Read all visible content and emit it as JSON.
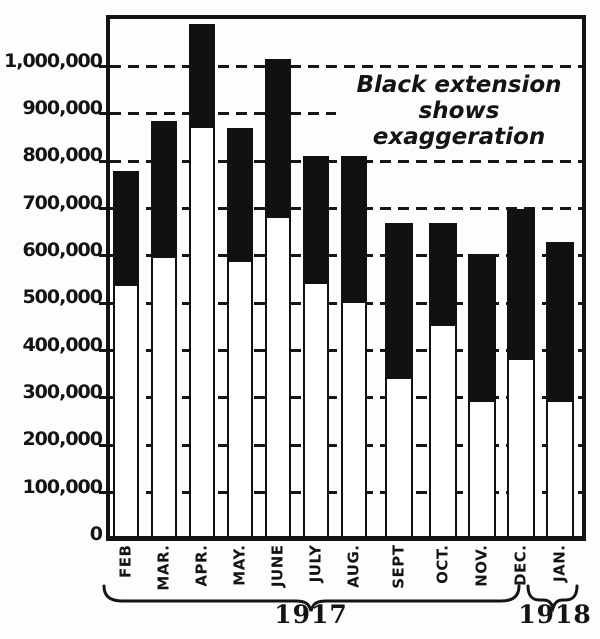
{
  "annotation": {
    "line1": "Black extension",
    "line2": "shows exaggeration"
  },
  "year_groups": [
    {
      "label": "1917",
      "covers": "FEB through DEC."
    },
    {
      "label": "1918",
      "covers": "JAN."
    }
  ],
  "y_axis": {
    "ticks": [
      {
        "value": 1000000,
        "label": "1,000,000"
      },
      {
        "value": 900000,
        "label": "900,000"
      },
      {
        "value": 800000,
        "label": "800,000"
      },
      {
        "value": 700000,
        "label": "700,000"
      },
      {
        "value": 600000,
        "label": "600,000"
      },
      {
        "value": 500000,
        "label": "500,000"
      },
      {
        "value": 400000,
        "label": "400,000"
      },
      {
        "value": 300000,
        "label": "300,000"
      },
      {
        "value": 200000,
        "label": "200,000"
      },
      {
        "value": 100000,
        "label": "100,000"
      },
      {
        "value": 0,
        "label": "0"
      }
    ]
  },
  "chart_data": {
    "type": "bar",
    "stacked": true,
    "categories": [
      "FEB",
      "MAR.",
      "APR.",
      "MAY.",
      "JUNE",
      "JULY",
      "AUG.",
      "SEPT",
      "OCT.",
      "NOV.",
      "DEC.",
      "JAN."
    ],
    "series": [
      {
        "name": "actual (white bar)",
        "values": [
          535000,
          595000,
          870000,
          585000,
          680000,
          540000,
          500000,
          340000,
          450000,
          290000,
          380000,
          290000
        ]
      },
      {
        "name": "black extension (exaggeration)",
        "values": [
          245000,
          290000,
          220000,
          285000,
          335000,
          270000,
          310000,
          330000,
          220000,
          315000,
          320000,
          340000
        ]
      }
    ],
    "totals": [
      780000,
      885000,
      1090000,
      870000,
      1015000,
      810000,
      810000,
      670000,
      670000,
      605000,
      700000,
      630000
    ],
    "title": "",
    "annotation_text": "Black extension shows exaggeration",
    "xlabel": "",
    "ylabel": "",
    "ylim": [
      0,
      1103000
    ],
    "ytick_interval": 100000,
    "grid": "dashed-horizontal-every-100000",
    "legend": "none",
    "colors": {
      "ink": "#141414",
      "bar_fill": "#ffffff",
      "extension_fill": "#111111",
      "paper": "#fdfdfb"
    }
  }
}
